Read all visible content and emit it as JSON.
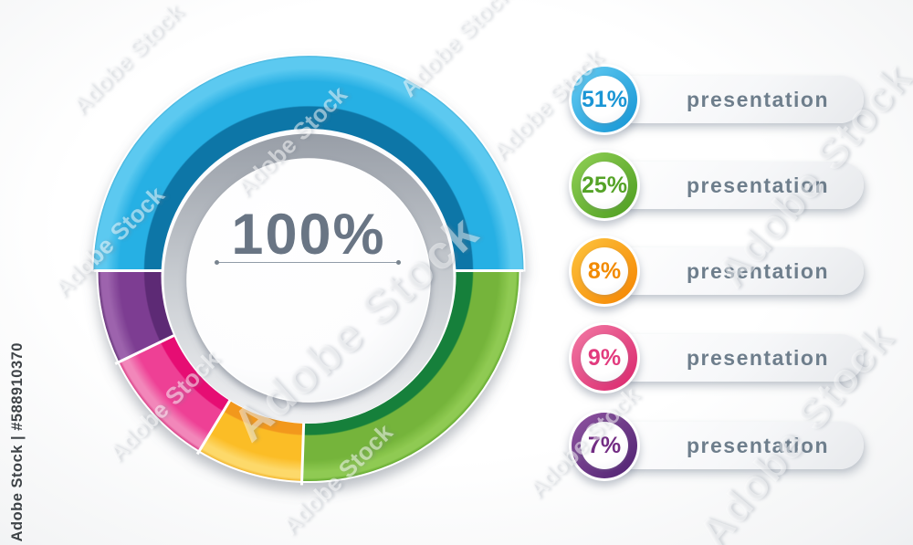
{
  "watermark": {
    "tile_text": "Adobe Stock",
    "id_label": "Adobe Stock | #588910370"
  },
  "chart_data": {
    "type": "pie",
    "style": "donut-3d",
    "title": "",
    "center_label": "100%",
    "units": "%",
    "legend_position": "right",
    "layout_hints": {
      "first_segment_spans_top_half": true,
      "start_angle_deg": 270,
      "clockwise": true
    },
    "segments": [
      {
        "label": "presentation",
        "value": 51,
        "display": "51%",
        "color": "#28b0e4",
        "color_light": "#5bc9f0",
        "color_dark": "#0d76a7",
        "color_edge": "#2f9fca",
        "text_color": "#1b96d5",
        "ring_light": "#66cef4",
        "ring_dark": "#1293d3"
      },
      {
        "label": "presentation",
        "value": 25,
        "display": "25%",
        "color": "#74b43a",
        "color_light": "#8fca52",
        "color_dark": "#15803a",
        "color_edge": "#55a023",
        "text_color": "#55a327",
        "ring_light": "#92d156",
        "ring_dark": "#4c9c1f"
      },
      {
        "label": "presentation",
        "value": 8,
        "display": "8%",
        "color": "#fbbd27",
        "color_light": "#fdd96b",
        "color_dark": "#f2981f",
        "color_edge": "#efac1d",
        "text_color": "#f28a00",
        "ring_light": "#fdc53f",
        "ring_dark": "#f58300"
      },
      {
        "label": "presentation",
        "value": 9,
        "display": "9%",
        "color": "#ee4095",
        "color_light": "#f287ba",
        "color_dark": "#e60b73",
        "color_edge": "#d22a77",
        "text_color": "#e23b7e",
        "ring_light": "#f27ba5",
        "ring_dark": "#d9246b"
      },
      {
        "label": "presentation",
        "value": 7,
        "display": "7%",
        "color": "#7d3e92",
        "color_light": "#9d64ad",
        "color_dark": "#5d2a74",
        "color_edge": "#542569",
        "text_color": "#732d84",
        "ring_light": "#9055a2",
        "ring_dark": "#4e2170"
      }
    ]
  }
}
